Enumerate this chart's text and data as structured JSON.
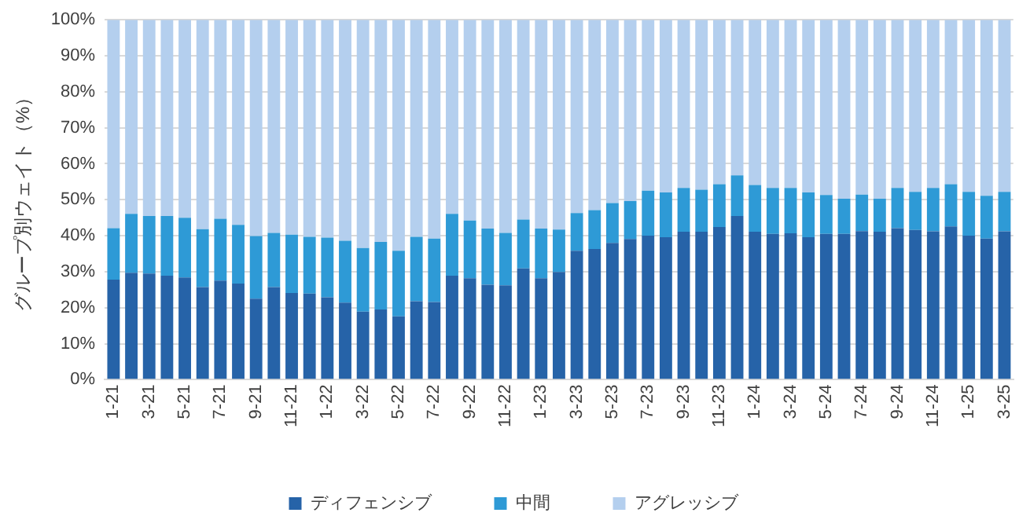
{
  "chart_data": {
    "type": "bar",
    "stacked": true,
    "ylabel": "グループ別ウェイト（%）",
    "categories": [
      "1-21",
      null,
      "3-21",
      null,
      "5-21",
      null,
      "7-21",
      null,
      "9-21",
      null,
      "11-21",
      null,
      "1-22",
      null,
      "3-22",
      null,
      "5-22",
      null,
      "7-22",
      null,
      "9-22",
      null,
      "11-22",
      null,
      "1-23",
      null,
      "3-23",
      null,
      "5-23",
      null,
      "7-23",
      null,
      "9-23",
      null,
      "11-23",
      null,
      "1-24",
      null,
      "3-24",
      null,
      "5-24",
      null,
      "7-24",
      null,
      "9-24",
      null,
      "11-24",
      null,
      "1-25",
      null,
      "3-25"
    ],
    "series": [
      {
        "name": "ディフェンシブ",
        "color": "#2663a8",
        "values": [
          27.8,
          29.7,
          29.5,
          28.9,
          28.4,
          25.7,
          27.5,
          26.7,
          22.5,
          25.7,
          24.1,
          23.9,
          22.9,
          21.4,
          18.9,
          19.5,
          17.6,
          21.8,
          21.6,
          28.9,
          28.2,
          26.4,
          26.2,
          30.9,
          28.2,
          29.9,
          35.8,
          36.3,
          38.0,
          39.1,
          40.0,
          39.6,
          41.1,
          41.1,
          42.4,
          45.5,
          41.1,
          40.5,
          40.7,
          39.6,
          40.5,
          40.5,
          41.3,
          41.1,
          42.1,
          41.6,
          41.2,
          42.6,
          40.0,
          39.2,
          41.2
        ]
      },
      {
        "name": "中間",
        "color": "#2e9ad6",
        "values": [
          14.3,
          16.4,
          16.0,
          16.6,
          16.6,
          16.1,
          17.2,
          16.3,
          17.4,
          15.1,
          16.2,
          15.8,
          16.6,
          17.2,
          17.7,
          18.8,
          18.2,
          17.9,
          17.6,
          17.2,
          16.0,
          15.6,
          14.6,
          13.6,
          13.8,
          11.8,
          10.5,
          10.8,
          11.1,
          10.5,
          12.5,
          12.4,
          12.2,
          11.7,
          11.9,
          11.3,
          13.0,
          12.8,
          12.6,
          12.4,
          10.8,
          9.8,
          10.1,
          9.2,
          11.2,
          10.6,
          12.1,
          11.7,
          12.2,
          11.9,
          11.0
        ]
      },
      {
        "name": "アグレッシブ",
        "color": "#b4cfee",
        "values": [
          57.9,
          53.9,
          54.5,
          54.5,
          55.0,
          58.2,
          55.3,
          57.0,
          60.1,
          59.2,
          59.7,
          60.3,
          60.5,
          61.4,
          63.4,
          61.7,
          64.2,
          60.3,
          60.8,
          53.9,
          55.8,
          58.0,
          59.2,
          55.5,
          58.0,
          58.3,
          53.7,
          52.9,
          50.9,
          50.4,
          47.5,
          48.0,
          46.7,
          47.2,
          45.7,
          43.2,
          45.9,
          46.7,
          46.7,
          48.0,
          48.7,
          49.7,
          48.6,
          49.7,
          46.7,
          47.8,
          46.7,
          45.7,
          47.8,
          48.9,
          47.8
        ]
      }
    ],
    "ylim": [
      0,
      100
    ],
    "yticks": [
      {
        "value": 0,
        "label": "0%"
      },
      {
        "value": 10,
        "label": "10%"
      },
      {
        "value": 20,
        "label": "20%"
      },
      {
        "value": 30,
        "label": "30%"
      },
      {
        "value": 40,
        "label": "40%"
      },
      {
        "value": 50,
        "label": "50%"
      },
      {
        "value": 60,
        "label": "60%"
      },
      {
        "value": 70,
        "label": "70%"
      },
      {
        "value": 80,
        "label": "80%"
      },
      {
        "value": 90,
        "label": "90%"
      },
      {
        "value": 100,
        "label": "100%"
      }
    ],
    "grid": "y",
    "legend": "bottom"
  }
}
